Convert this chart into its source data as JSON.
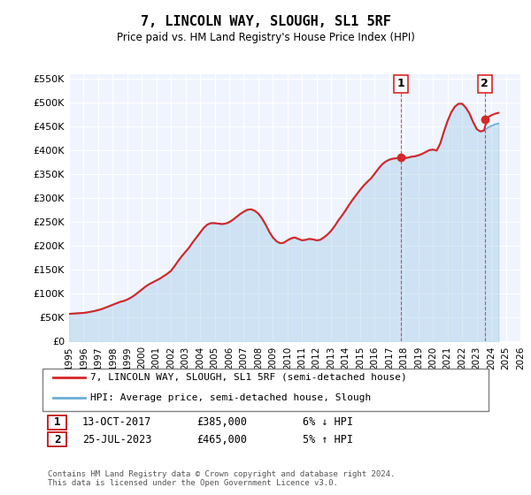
{
  "title": "7, LINCOLN WAY, SLOUGH, SL1 5RF",
  "subtitle": "Price paid vs. HM Land Registry's House Price Index (HPI)",
  "ylabel_ticks": [
    "£0",
    "£50K",
    "£100K",
    "£150K",
    "£200K",
    "£250K",
    "£300K",
    "£350K",
    "£400K",
    "£450K",
    "£500K",
    "£550K"
  ],
  "ytick_values": [
    0,
    50000,
    100000,
    150000,
    200000,
    250000,
    300000,
    350000,
    400000,
    450000,
    500000,
    550000
  ],
  "xlim_start": 1995,
  "xlim_end": 2026,
  "ylim_min": 0,
  "ylim_max": 560000,
  "sale1_year": 2017.79,
  "sale1_price": 385000,
  "sale2_year": 2023.56,
  "sale2_price": 465000,
  "sale1_label": "1",
  "sale2_label": "2",
  "legend_line1": "7, LINCOLN WAY, SLOUGH, SL1 5RF (semi-detached house)",
  "legend_line2": "HPI: Average price, semi-detached house, Slough",
  "annotation1": "1    13-OCT-2017         £385,000         6% ↓ HPI",
  "annotation2": "2    25-JUL-2023         £465,000         5% ↑ HPI",
  "footer": "Contains HM Land Registry data © Crown copyright and database right 2024.\nThis data is licensed under the Open Government Licence v3.0.",
  "hpi_color": "#6baed6",
  "price_color": "#d62728",
  "vline_color": "#d62728",
  "background_color": "#f0f4ff",
  "hpi_data_years": [
    1995.0,
    1995.25,
    1995.5,
    1995.75,
    1996.0,
    1996.25,
    1996.5,
    1996.75,
    1997.0,
    1997.25,
    1997.5,
    1997.75,
    1998.0,
    1998.25,
    1998.5,
    1998.75,
    1999.0,
    1999.25,
    1999.5,
    1999.75,
    2000.0,
    2000.25,
    2000.5,
    2000.75,
    2001.0,
    2001.25,
    2001.5,
    2001.75,
    2002.0,
    2002.25,
    2002.5,
    2002.75,
    2003.0,
    2003.25,
    2003.5,
    2003.75,
    2004.0,
    2004.25,
    2004.5,
    2004.75,
    2005.0,
    2005.25,
    2005.5,
    2005.75,
    2006.0,
    2006.25,
    2006.5,
    2006.75,
    2007.0,
    2007.25,
    2007.5,
    2007.75,
    2008.0,
    2008.25,
    2008.5,
    2008.75,
    2009.0,
    2009.25,
    2009.5,
    2009.75,
    2010.0,
    2010.25,
    2010.5,
    2010.75,
    2011.0,
    2011.25,
    2011.5,
    2011.75,
    2012.0,
    2012.25,
    2012.5,
    2012.75,
    2013.0,
    2013.25,
    2013.5,
    2013.75,
    2014.0,
    2014.25,
    2014.5,
    2014.75,
    2015.0,
    2015.25,
    2015.5,
    2015.75,
    2016.0,
    2016.25,
    2016.5,
    2016.75,
    2017.0,
    2017.25,
    2017.5,
    2017.75,
    2018.0,
    2018.25,
    2018.5,
    2018.75,
    2019.0,
    2019.25,
    2019.5,
    2019.75,
    2020.0,
    2020.25,
    2020.5,
    2020.75,
    2021.0,
    2021.25,
    2021.5,
    2021.75,
    2022.0,
    2022.25,
    2022.5,
    2022.75,
    2023.0,
    2023.25,
    2023.5,
    2023.75,
    2024.0,
    2024.25,
    2024.5
  ],
  "hpi_data_values": [
    58000,
    58500,
    59000,
    59500,
    60000,
    61000,
    62500,
    64000,
    66000,
    68000,
    71000,
    74000,
    77000,
    80000,
    83000,
    85000,
    88000,
    92000,
    97000,
    103000,
    109000,
    115000,
    120000,
    124000,
    128000,
    132000,
    137000,
    142000,
    148000,
    158000,
    169000,
    179000,
    188000,
    197000,
    208000,
    218000,
    228000,
    238000,
    245000,
    248000,
    248000,
    247000,
    246000,
    247000,
    250000,
    255000,
    261000,
    267000,
    272000,
    276000,
    277000,
    274000,
    268000,
    258000,
    245000,
    230000,
    218000,
    210000,
    206000,
    207000,
    212000,
    216000,
    218000,
    215000,
    212000,
    213000,
    215000,
    214000,
    212000,
    213000,
    218000,
    224000,
    232000,
    242000,
    254000,
    264000,
    275000,
    287000,
    298000,
    308000,
    318000,
    327000,
    335000,
    342000,
    352000,
    362000,
    371000,
    377000,
    381000,
    383000,
    384000,
    385000,
    384000,
    385000,
    387000,
    388000,
    390000,
    393000,
    397000,
    401000,
    402000,
    400000,
    415000,
    440000,
    462000,
    480000,
    492000,
    498000,
    498000,
    490000,
    478000,
    460000,
    445000,
    440000,
    442000,
    448000,
    452000,
    455000,
    457000
  ],
  "price_data_years": [
    2017.79,
    2023.56
  ],
  "price_data_values": [
    385000,
    465000
  ],
  "xtick_years": [
    1995,
    1996,
    1997,
    1998,
    1999,
    2000,
    2001,
    2002,
    2003,
    2004,
    2005,
    2006,
    2007,
    2008,
    2009,
    2010,
    2011,
    2012,
    2013,
    2014,
    2015,
    2016,
    2017,
    2018,
    2019,
    2020,
    2021,
    2022,
    2023,
    2024,
    2025,
    2026
  ]
}
